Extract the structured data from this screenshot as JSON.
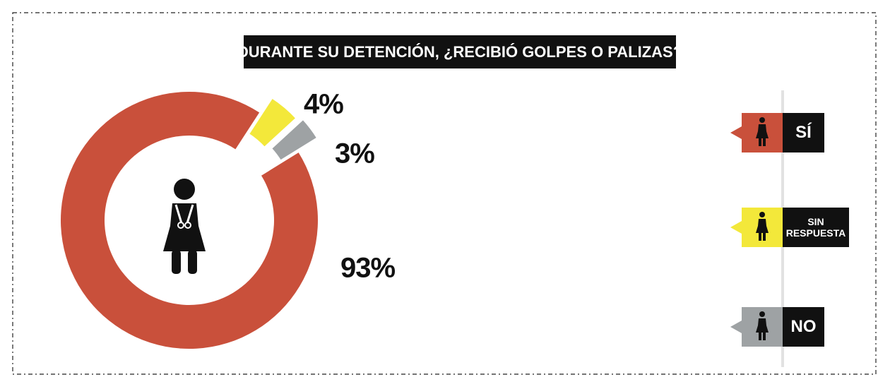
{
  "chart_data": {
    "type": "pie",
    "donut": true,
    "title": "DURANTE SU DETENCIÓN, ¿RECIBIÓ GOLPES O PALIZAS?",
    "categories": [
      "SÍ",
      "SIN RESPUESTA",
      "NO"
    ],
    "values": [
      93,
      4,
      3
    ],
    "value_labels": [
      "93%",
      "4%",
      "3%"
    ],
    "colors": [
      "#c9503b",
      "#f3e83a",
      "#9ea2a4"
    ]
  }
}
